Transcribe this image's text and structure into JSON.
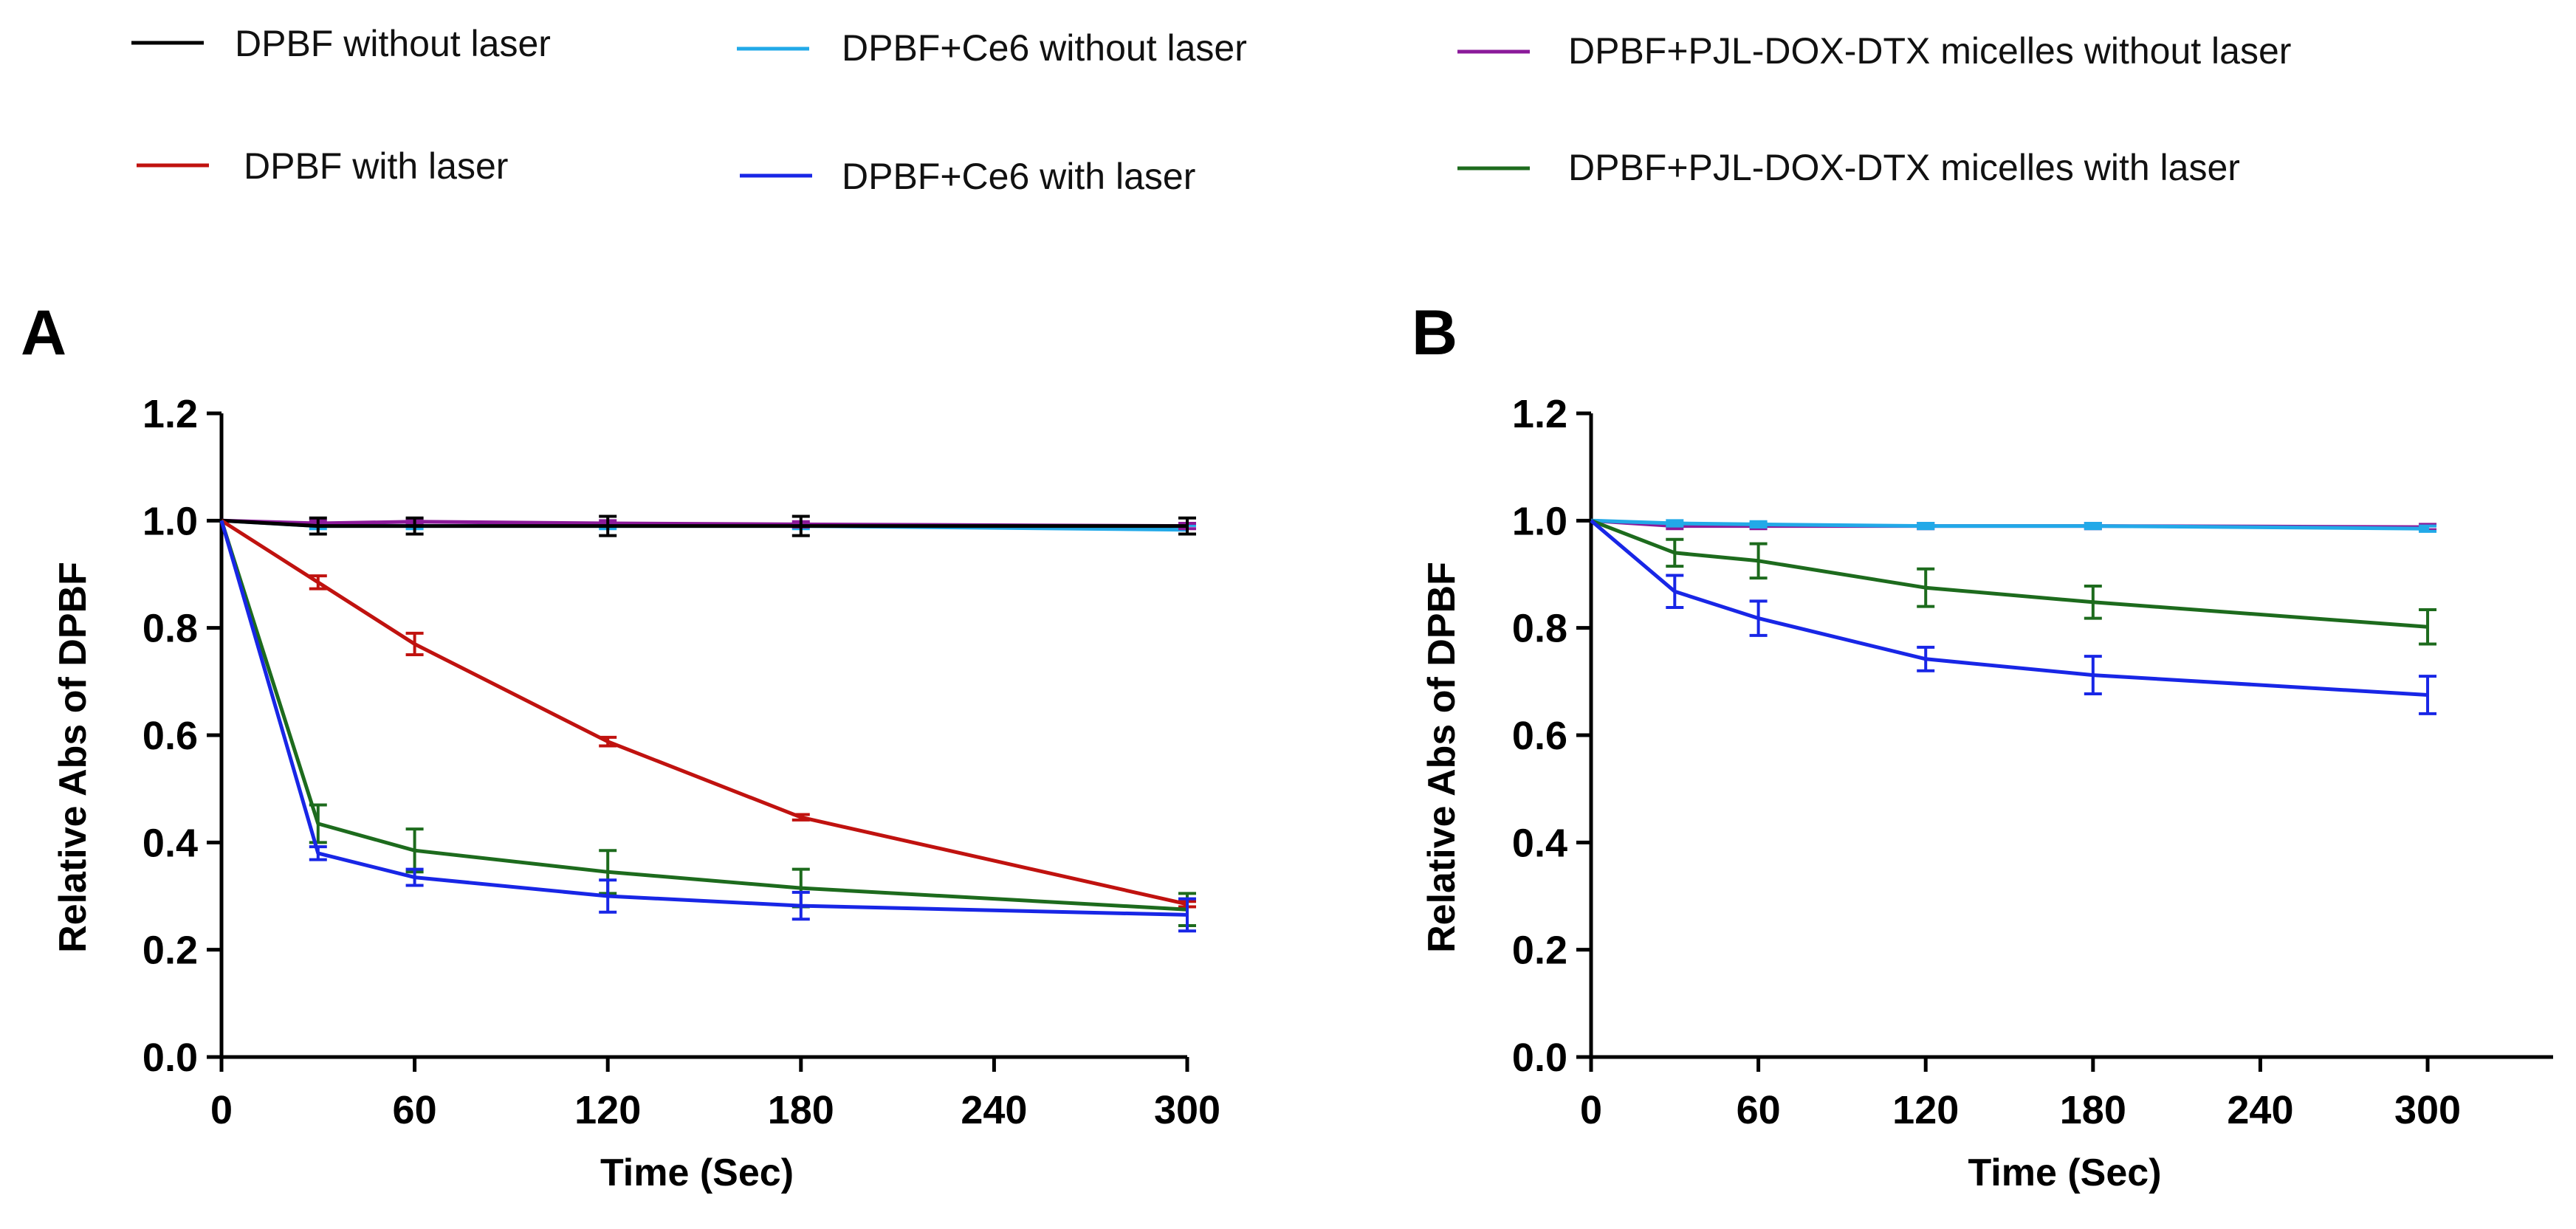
{
  "legend": [
    {
      "name": "DPBF without laser",
      "color": "#000000"
    },
    {
      "name": "DPBF+Ce6 without laser",
      "color": "#22a9e8"
    },
    {
      "name": "DPBF+PJL-DOX-DTX micelles without laser",
      "color": "#8b1a9a"
    },
    {
      "name": "DPBF with laser",
      "color": "#c0120f"
    },
    {
      "name": "DPBF+Ce6 with laser",
      "color": "#1826e6"
    },
    {
      "name": "DPBF+PJL-DOX-DTX micelles with laser",
      "color": "#1d6b1d"
    }
  ],
  "chart_data": [
    {
      "panel": "A",
      "type": "line",
      "xlabel": "Time (Sec)",
      "ylabel": "Relative Abs of DPBF",
      "xlim": [
        0,
        300
      ],
      "ylim": [
        0,
        1.2
      ],
      "xticks": [
        "0",
        "60",
        "120",
        "180",
        "240",
        "300"
      ],
      "yticks": [
        "0.0",
        "0.2",
        "0.4",
        "0.6",
        "0.8",
        "1.0",
        "1.2"
      ],
      "x": [
        0,
        30,
        60,
        120,
        180,
        300
      ],
      "series": [
        {
          "name": "DPBF+Ce6 without laser",
          "color": "#22a9e8",
          "values": [
            1.0,
            0.99,
            0.99,
            0.99,
            0.99,
            0.983
          ],
          "errors": [
            0,
            0.005,
            0.005,
            0.005,
            0.005,
            0.008
          ]
        },
        {
          "name": "DPBF+PJL-DOX-DTX micelles without laser",
          "color": "#8b1a9a",
          "values": [
            1.0,
            0.995,
            0.998,
            0.995,
            0.993,
            0.99
          ],
          "errors": [
            0,
            0.005,
            0.005,
            0.005,
            0.005,
            0.005
          ]
        },
        {
          "name": "DPBF without laser",
          "color": "#000000",
          "values": [
            1.0,
            0.99,
            0.99,
            0.99,
            0.99,
            0.99
          ],
          "errors": [
            0,
            0.015,
            0.015,
            0.018,
            0.018,
            0.015
          ]
        },
        {
          "name": "DPBF with laser",
          "color": "#c0120f",
          "values": [
            1.0,
            0.885,
            0.77,
            0.588,
            0.447,
            0.285
          ],
          "errors": [
            0,
            0.012,
            0.02,
            0.008,
            0.005,
            0.005
          ]
        },
        {
          "name": "DPBF+PJL-DOX-DTX micelles with laser",
          "color": "#1d6b1d",
          "values": [
            1.0,
            0.435,
            0.385,
            0.345,
            0.315,
            0.275
          ],
          "errors": [
            0,
            0.035,
            0.04,
            0.04,
            0.035,
            0.03
          ]
        },
        {
          "name": "DPBF+Ce6 with laser",
          "color": "#1826e6",
          "values": [
            1.0,
            0.38,
            0.335,
            0.3,
            0.282,
            0.265
          ],
          "errors": [
            0,
            0.012,
            0.015,
            0.03,
            0.025,
            0.03
          ]
        }
      ]
    },
    {
      "panel": "B",
      "type": "line",
      "xlabel": "Time (Sec)",
      "ylabel": "Relative Abs of DPBF",
      "xlim": [
        0,
        345
      ],
      "ylim": [
        0,
        1.2
      ],
      "xticks": [
        "0",
        "60",
        "120",
        "180",
        "240",
        "300"
      ],
      "yticks": [
        "0.0",
        "0.2",
        "0.4",
        "0.6",
        "0.8",
        "1.0",
        "1.2"
      ],
      "x": [
        0,
        30,
        60,
        120,
        180,
        300
      ],
      "series": [
        {
          "name": "DPBF+PJL-DOX-DTX micelles without laser",
          "color": "#8b1a9a",
          "values": [
            1.0,
            0.99,
            0.99,
            0.99,
            0.99,
            0.988
          ],
          "errors": [
            0,
            0.005,
            0.005,
            0.005,
            0.005,
            0.005
          ]
        },
        {
          "name": "DPBF+Ce6 without laser",
          "color": "#22a9e8",
          "values": [
            1.0,
            0.995,
            0.993,
            0.99,
            0.99,
            0.985
          ],
          "errors": [
            0,
            0.005,
            0.005,
            0.005,
            0.005,
            0.005
          ]
        },
        {
          "name": "DPBF+PJL-DOX-DTX micelles with laser",
          "color": "#1d6b1d",
          "values": [
            1.0,
            0.94,
            0.925,
            0.875,
            0.848,
            0.802
          ],
          "errors": [
            0,
            0.025,
            0.032,
            0.035,
            0.03,
            0.032
          ]
        },
        {
          "name": "DPBF+Ce6 with laser",
          "color": "#1826e6",
          "values": [
            1.0,
            0.868,
            0.818,
            0.742,
            0.712,
            0.675
          ],
          "errors": [
            0,
            0.03,
            0.032,
            0.022,
            0.035,
            0.035
          ]
        }
      ]
    }
  ]
}
